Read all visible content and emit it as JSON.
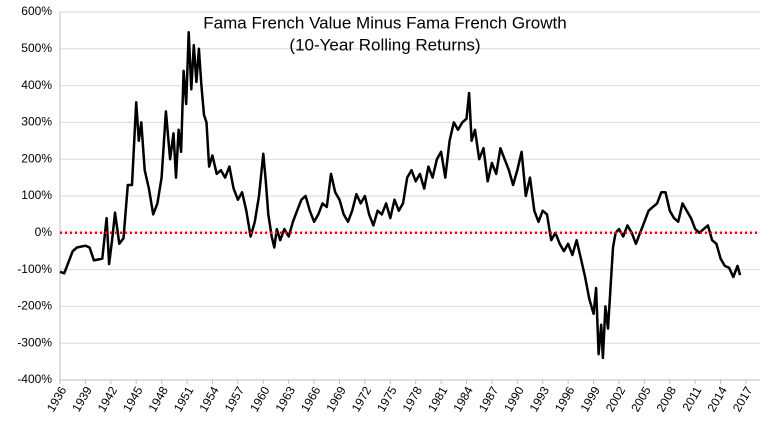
{
  "chart_data": {
    "type": "line",
    "title": "Fama French Value Minus Fama French Growth",
    "subtitle": "(10-Year Rolling Returns)",
    "color": "#000000",
    "grid": true,
    "hline": 0,
    "hline_color": "#ff0000",
    "xlim": [
      1936,
      2017
    ],
    "xticks": [
      1936,
      1939,
      1942,
      1945,
      1948,
      1951,
      1954,
      1957,
      1960,
      1963,
      1966,
      1969,
      1972,
      1975,
      1978,
      1981,
      1984,
      1987,
      1990,
      1993,
      1996,
      1999,
      2002,
      2005,
      2008,
      2011,
      2014,
      2017
    ],
    "ylim": [
      -400,
      600
    ],
    "yticks": [
      {
        "value": -400,
        "label": "-400%"
      },
      {
        "value": -300,
        "label": "-300%"
      },
      {
        "value": -200,
        "label": "-200%"
      },
      {
        "value": -100,
        "label": "-100%"
      },
      {
        "value": 0,
        "label": "0%"
      },
      {
        "value": 100,
        "label": "100%"
      },
      {
        "value": 200,
        "label": "200%"
      },
      {
        "value": 300,
        "label": "300%"
      },
      {
        "value": 400,
        "label": "400%"
      },
      {
        "value": 500,
        "label": "500%"
      },
      {
        "value": 600,
        "label": "600%"
      }
    ],
    "x": [
      1936.0,
      1936.5,
      1937.0,
      1937.5,
      1938.0,
      1939.0,
      1939.5,
      1940.0,
      1941.0,
      1941.5,
      1941.8,
      1942.2,
      1942.5,
      1943.0,
      1943.5,
      1944.0,
      1944.5,
      1945.0,
      1945.3,
      1945.6,
      1946.0,
      1946.5,
      1947.0,
      1947.5,
      1948.0,
      1948.5,
      1949.0,
      1949.4,
      1949.7,
      1950.0,
      1950.3,
      1950.6,
      1950.9,
      1951.2,
      1951.5,
      1951.8,
      1952.1,
      1952.4,
      1952.7,
      1953.0,
      1953.3,
      1953.6,
      1954.0,
      1954.5,
      1955.0,
      1955.5,
      1956.0,
      1956.5,
      1957.0,
      1957.5,
      1958.0,
      1958.5,
      1959.0,
      1959.5,
      1960.0,
      1960.3,
      1960.6,
      1961.0,
      1961.3,
      1961.6,
      1962.0,
      1962.5,
      1963.0,
      1963.5,
      1964.0,
      1964.5,
      1965.0,
      1965.5,
      1966.0,
      1966.5,
      1967.0,
      1967.5,
      1968.0,
      1968.5,
      1969.0,
      1969.5,
      1970.0,
      1970.5,
      1971.0,
      1971.5,
      1972.0,
      1972.5,
      1973.0,
      1973.5,
      1974.0,
      1974.5,
      1975.0,
      1975.5,
      1976.0,
      1976.5,
      1977.0,
      1977.5,
      1978.0,
      1978.5,
      1979.0,
      1979.5,
      1980.0,
      1980.5,
      1981.0,
      1981.5,
      1982.0,
      1982.5,
      1983.0,
      1983.5,
      1984.0,
      1984.3,
      1984.6,
      1985.0,
      1985.5,
      1986.0,
      1986.5,
      1987.0,
      1987.5,
      1988.0,
      1988.5,
      1989.0,
      1989.5,
      1990.0,
      1990.5,
      1991.0,
      1991.5,
      1992.0,
      1992.5,
      1993.0,
      1993.5,
      1994.0,
      1994.5,
      1995.0,
      1995.5,
      1996.0,
      1996.5,
      1997.0,
      1997.5,
      1998.0,
      1998.5,
      1999.0,
      1999.3,
      1999.6,
      1999.9,
      2000.1,
      2000.4,
      2000.7,
      2001.0,
      2001.3,
      2001.6,
      2002.0,
      2002.5,
      2003.0,
      2003.5,
      2004.0,
      2004.5,
      2005.0,
      2005.5,
      2006.0,
      2006.5,
      2007.0,
      2007.5,
      2008.0,
      2008.5,
      2009.0,
      2009.5,
      2010.0,
      2010.5,
      2011.0,
      2011.5,
      2012.0,
      2012.5,
      2013.0,
      2013.5,
      2014.0,
      2014.5,
      2015.0,
      2015.5,
      2016.0,
      2016.3
    ],
    "values": [
      -106,
      -110,
      -80,
      -50,
      -40,
      -35,
      -40,
      -75,
      -70,
      40,
      -85,
      -10,
      55,
      -30,
      -15,
      130,
      130,
      355,
      250,
      300,
      170,
      120,
      50,
      80,
      150,
      330,
      200,
      270,
      150,
      280,
      220,
      440,
      350,
      545,
      390,
      510,
      410,
      500,
      400,
      320,
      300,
      180,
      210,
      160,
      170,
      150,
      180,
      120,
      90,
      110,
      60,
      -10,
      30,
      100,
      215,
      140,
      50,
      -10,
      -40,
      10,
      -20,
      10,
      -10,
      30,
      60,
      90,
      100,
      60,
      30,
      50,
      80,
      70,
      160,
      110,
      90,
      50,
      30,
      60,
      105,
      80,
      100,
      50,
      20,
      60,
      50,
      80,
      40,
      90,
      60,
      80,
      150,
      170,
      140,
      160,
      120,
      180,
      150,
      200,
      220,
      150,
      250,
      300,
      280,
      300,
      310,
      380,
      250,
      280,
      200,
      230,
      140,
      190,
      160,
      230,
      200,
      170,
      130,
      170,
      220,
      100,
      150,
      60,
      30,
      60,
      50,
      -20,
      0,
      -30,
      -50,
      -30,
      -60,
      -20,
      -70,
      -120,
      -180,
      -220,
      -150,
      -330,
      -250,
      -340,
      -200,
      -260,
      -150,
      -40,
      0,
      10,
      -10,
      20,
      0,
      -30,
      0,
      30,
      60,
      70,
      80,
      110,
      110,
      60,
      40,
      30,
      80,
      60,
      40,
      10,
      0,
      10,
      20,
      -20,
      -30,
      -70,
      -90,
      -95,
      -120,
      -90,
      -115
    ]
  }
}
